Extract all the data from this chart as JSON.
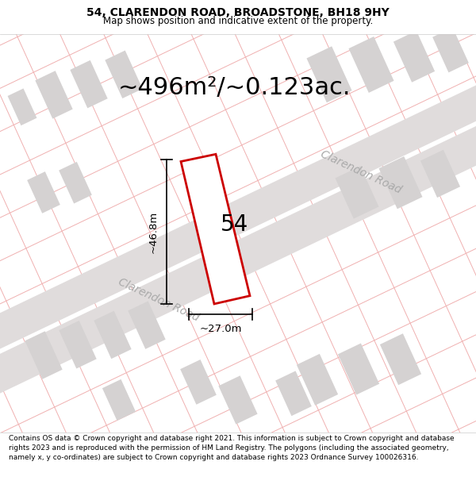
{
  "title": "54, CLARENDON ROAD, BROADSTONE, BH18 9HY",
  "subtitle": "Map shows position and indicative extent of the property.",
  "area_label": "~496m²/~0.123ac.",
  "number_label": "54",
  "dim_width": "~27.0m",
  "dim_height": "~46.8m",
  "road_label_1": "Clarendon Road",
  "road_label_2": "Clarendon Road",
  "footer": "Contains OS data © Crown copyright and database right 2021. This information is subject to Crown copyright and database rights 2023 and is reproduced with the permission of HM Land Registry. The polygons (including the associated geometry, namely x, y co-ordinates) are subject to Crown copyright and database rights 2023 Ordnance Survey 100026316.",
  "map_bg": "#f7f5f5",
  "plot_outline_color": "#cc0000",
  "plot_fill_color": "#ffffff",
  "road_fill_color": "#e0dcdc",
  "building_fill_color": "#d5d2d2",
  "pink_line_color": "#f0b0b0",
  "pink_line_color2": "#f8d0d0",
  "title_fontsize": 10,
  "subtitle_fontsize": 8.5,
  "area_fontsize": 22,
  "number_fontsize": 20,
  "dim_fontsize": 9.5,
  "road_fontsize": 10,
  "footer_fontsize": 6.5
}
